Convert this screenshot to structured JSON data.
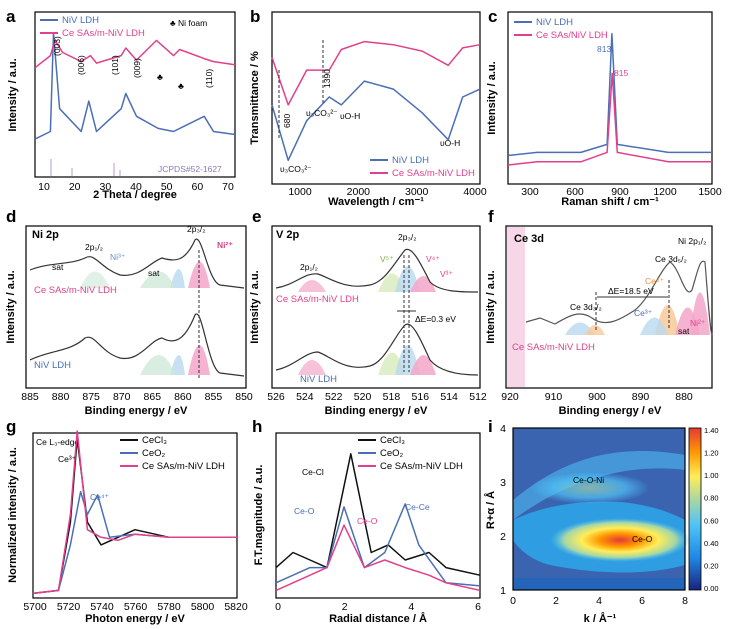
{
  "colors": {
    "blue": "#4a6fb5",
    "pink": "#e0408c",
    "black": "#111111",
    "grid": "#444444"
  },
  "panels": {
    "a": {
      "letter": "a",
      "ylabel": "Intensity / a.u.",
      "xlabel": "2 Theta / degree",
      "xticks": [
        "10",
        "20",
        "30",
        "40",
        "50",
        "60",
        "70"
      ],
      "legend": [
        "NiV LDH",
        "Ce SAs/m-NiV LDH"
      ],
      "ni_foam": "Ni foam",
      "peaks": [
        "(003)",
        "(006)",
        "(101)",
        "(009)",
        "(110)"
      ],
      "jcpds": "JCPDS#52-1627"
    },
    "b": {
      "letter": "b",
      "ylabel": "Transmittance / %",
      "xlabel": "Wavelength / cm⁻¹",
      "xticks": [
        "1000",
        "2000",
        "3000",
        "4000"
      ],
      "legend": [
        "NiV LDH",
        "Ce SAs/m-NiV LDH"
      ],
      "ann": {
        "co3a": "υ₃CO₃²⁻",
        "co3b": "υ₃CO₃²⁻",
        "oh1": "υO-H",
        "oh2": "υO-H",
        "w680": "680",
        "w1390": "1390"
      }
    },
    "c": {
      "letter": "c",
      "ylabel": "Intensity / a.u.",
      "xlabel": "Raman shift / cm⁻¹",
      "xticks": [
        "300",
        "600",
        "900",
        "1200",
        "1500"
      ],
      "legend": [
        "NiV LDH",
        "Ce SAs/NiV LDH"
      ],
      "p813": "813",
      "p815": "815"
    },
    "d": {
      "letter": "d",
      "title": "Ni 2p",
      "ylabel": "Intensity / a.u.",
      "xlabel": "Binding energy / eV",
      "xticks": [
        "885",
        "880",
        "875",
        "870",
        "865",
        "860",
        "855",
        "850"
      ],
      "labels": {
        "p12": "2p₁/₂",
        "p32": "2p₃/₂",
        "sat1": "sat",
        "sat2": "sat",
        "ni3": "Ni³⁺",
        "ni2": "Ni²⁺",
        "top": "Ce SAs/m-NiV LDH",
        "bot": "NiV LDH"
      }
    },
    "e": {
      "letter": "e",
      "title": "V 2p",
      "ylabel": "Intensity / a.u.",
      "xlabel": "Binding energy / eV",
      "xticks": [
        "526",
        "524",
        "522",
        "520",
        "518",
        "516",
        "514",
        "512"
      ],
      "labels": {
        "p12": "2p₁/₂",
        "p32": "2p₃/₂",
        "v5": "V⁵⁺",
        "v4": "V⁴⁺",
        "v3": "V³⁺",
        "shift": "ΔE=0.3 eV",
        "top": "Ce SAs/m-NiV LDH",
        "bot": "NiV LDH"
      }
    },
    "f": {
      "letter": "f",
      "title": "Ce 3d",
      "ylabel": "Intensity / a.u.",
      "xlabel": "Binding energy / eV",
      "xticks": [
        "920",
        "910",
        "900",
        "890",
        "880"
      ],
      "labels": {
        "ni": "Ni 2p₁/₂",
        "ce32": "Ce 3d₅/₂",
        "ce52": "Ce 3d₃/₂",
        "de": "ΔE=18.5 eV",
        "ce4": "Ce⁴⁺",
        "ce3": "Ce³⁺",
        "ni2": "Ni²⁺",
        "sat": "sat",
        "sample": "Ce SAs/m-NiV LDH"
      }
    },
    "g": {
      "letter": "g",
      "title": "Ce L₃-edge",
      "ylabel": "Normalized intensity / a.u.",
      "xlabel": "Photon energy / eV",
      "xticks": [
        "5700",
        "5720",
        "5740",
        "5760",
        "5780",
        "5800",
        "5820"
      ],
      "legend": [
        "CeCl₃",
        "CeO₂",
        "Ce SAs/m-NiV LDH"
      ],
      "ce3": "Ce³⁺",
      "ce4": "Ce⁴⁺"
    },
    "h": {
      "letter": "h",
      "ylabel": "F.T.magnitude / a.u.",
      "xlabel": "Radial distance / Å",
      "xticks": [
        "0",
        "2",
        "4",
        "6"
      ],
      "legend": [
        "CeCl₃",
        "CeO₂",
        "Ce SAs/m-NiV LDH"
      ],
      "ann": {
        "cecl": "Ce-Cl",
        "ceo1": "Ce-O",
        "ceo2": "Ce-O",
        "cece": "Ce-Ce"
      }
    },
    "i": {
      "letter": "i",
      "ylabel": "R+α / Å",
      "xlabel": "k / Å⁻¹",
      "xticks": [
        "0",
        "2",
        "4",
        "6",
        "8"
      ],
      "yticks": [
        "1",
        "2",
        "3",
        "4"
      ],
      "cbticks": [
        "0.00",
        "0.20",
        "0.40",
        "0.60",
        "0.80",
        "1.00",
        "1.20",
        "1.40"
      ],
      "ann": {
        "ceoni": "Ce-O-Ni",
        "ceo": "Ce-O"
      }
    }
  },
  "chart_data": [
    {
      "panel": "a",
      "type": "line",
      "title": "",
      "xlabel": "2 Theta / degree",
      "ylabel": "Intensity / a.u.",
      "xlim": [
        5,
        70
      ],
      "series": [
        {
          "name": "NiV LDH",
          "x": [
            5,
            10,
            11,
            13,
            20,
            22.5,
            25,
            33,
            34.5,
            38,
            45,
            50,
            60,
            63,
            70
          ],
          "y": [
            0.25,
            0.3,
            0.95,
            0.45,
            0.3,
            0.5,
            0.3,
            0.45,
            0.55,
            0.4,
            0.32,
            0.3,
            0.4,
            0.3,
            0.28
          ]
        },
        {
          "name": "Ce SAs/m-NiV LDH",
          "x": [
            5,
            10,
            11.5,
            14,
            20,
            23,
            25,
            33,
            34.5,
            38,
            44.5,
            50,
            52,
            60,
            63,
            70
          ],
          "y": [
            0.72,
            0.8,
            0.9,
            0.82,
            0.76,
            0.8,
            0.75,
            0.8,
            0.85,
            0.77,
            0.9,
            0.8,
            0.84,
            0.78,
            0.76,
            0.74
          ]
        }
      ]
    },
    {
      "panel": "b",
      "type": "line",
      "xlabel": "Wavelength / cm⁻¹",
      "ylabel": "Transmittance / %",
      "xlim": [
        400,
        4000
      ],
      "series": [
        {
          "name": "NiV LDH",
          "x": [
            400,
            680,
            1000,
            1390,
            1600,
            2000,
            2500,
            3000,
            3450,
            3700,
            4000
          ],
          "y": [
            0.5,
            0.15,
            0.4,
            0.55,
            0.5,
            0.65,
            0.6,
            0.45,
            0.28,
            0.55,
            0.6
          ]
        },
        {
          "name": "Ce SAs/m-NiV LDH",
          "x": [
            400,
            680,
            1000,
            1390,
            1600,
            2000,
            2500,
            3000,
            3450,
            3700,
            4000
          ],
          "y": [
            0.8,
            0.5,
            0.72,
            0.72,
            0.85,
            0.9,
            0.88,
            0.84,
            0.75,
            0.86,
            0.88
          ]
        }
      ]
    },
    {
      "panel": "c",
      "type": "line",
      "xlabel": "Raman shift / cm⁻¹",
      "ylabel": "Intensity / a.u.",
      "xlim": [
        100,
        1500
      ],
      "series": [
        {
          "name": "NiV LDH",
          "x": [
            100,
            300,
            600,
            780,
            813,
            850,
            1200,
            1500
          ],
          "y": [
            0.18,
            0.2,
            0.2,
            0.25,
            0.95,
            0.25,
            0.2,
            0.2
          ]
        },
        {
          "name": "Ce SAs/NiV LDH",
          "x": [
            100,
            300,
            600,
            780,
            815,
            850,
            1200,
            1500
          ],
          "y": [
            0.12,
            0.14,
            0.14,
            0.2,
            0.7,
            0.2,
            0.14,
            0.14
          ]
        }
      ]
    },
    {
      "panel": "d",
      "type": "line",
      "xlabel": "Binding energy / eV",
      "xlim": [
        885,
        850
      ],
      "peaks": {
        "Ni2+ 2p3/2": 855.6,
        "Ni3+ 2p3/2": 857,
        "sat": 861.5,
        "2p1/2": 873.5
      }
    },
    {
      "panel": "e",
      "type": "line",
      "xlabel": "Binding energy / eV",
      "xlim": [
        527,
        512
      ],
      "peaks": {
        "V5+": 517.5,
        "V4+": 516.8,
        "V3+": 515.8,
        "2p1/2": 524
      },
      "shift_eV": 0.3
    },
    {
      "panel": "f",
      "type": "line",
      "xlabel": "Binding energy / eV",
      "xlim": [
        920,
        872
      ],
      "peaks": {
        "Ce 3d3/2": 900,
        "Ce 3d5/2": 881.5,
        "Ni 2p1/2": 873.5
      },
      "deltaE_eV": 18.5
    },
    {
      "panel": "g",
      "type": "line",
      "xlabel": "Photon energy / eV",
      "ylabel": "Normalized intensity / a.u.",
      "xlim": [
        5700,
        5820
      ],
      "series": [
        {
          "name": "CeCl₃",
          "x": [
            5700,
            5715,
            5722,
            5726,
            5732,
            5740,
            5750,
            5760,
            5780,
            5820
          ],
          "y": [
            0.03,
            0.05,
            0.5,
            1.05,
            0.5,
            0.35,
            0.4,
            0.45,
            0.4,
            0.4
          ]
        },
        {
          "name": "CeO₂",
          "x": [
            5700,
            5715,
            5722,
            5728,
            5732,
            5738,
            5745,
            5760,
            5780,
            5820
          ],
          "y": [
            0.03,
            0.05,
            0.35,
            0.7,
            0.55,
            0.68,
            0.4,
            0.42,
            0.4,
            0.4
          ]
        },
        {
          "name": "Ce SAs/m-NiV LDH",
          "x": [
            5700,
            5715,
            5722,
            5726,
            5732,
            5740,
            5750,
            5760,
            5780,
            5820
          ],
          "y": [
            0.03,
            0.05,
            0.55,
            1.1,
            0.45,
            0.4,
            0.38,
            0.42,
            0.4,
            0.4
          ]
        }
      ]
    },
    {
      "panel": "h",
      "type": "line",
      "xlabel": "Radial distance / Å",
      "ylabel": "F.T.magnitude / a.u.",
      "xlim": [
        0,
        6
      ],
      "series": [
        {
          "name": "CeCl₃",
          "x": [
            0,
            0.5,
            1,
            1.5,
            2.2,
            2.8,
            3.3,
            3.8,
            4.5,
            5,
            6
          ],
          "y": [
            0.2,
            0.3,
            0.25,
            0.2,
            0.95,
            0.3,
            0.35,
            0.25,
            0.3,
            0.2,
            0.15
          ]
        },
        {
          "name": "CeO₂",
          "x": [
            0,
            0.5,
            1,
            1.5,
            2,
            2.6,
            3.2,
            3.8,
            4.2,
            5,
            6
          ],
          "y": [
            0.1,
            0.15,
            0.2,
            0.2,
            0.6,
            0.2,
            0.3,
            0.62,
            0.35,
            0.1,
            0.08
          ]
        },
        {
          "name": "Ce SAs/m-NiV LDH",
          "x": [
            0,
            0.5,
            1,
            1.5,
            2,
            2.6,
            3.2,
            3.8,
            4.5,
            5,
            6
          ],
          "y": [
            0.05,
            0.1,
            0.15,
            0.2,
            0.48,
            0.2,
            0.25,
            0.2,
            0.15,
            0.1,
            0.05
          ]
        }
      ]
    },
    {
      "panel": "i",
      "type": "heatmap",
      "xlabel": "k / Å⁻¹",
      "ylabel": "R+α / Å",
      "xlim": [
        0,
        8
      ],
      "ylim": [
        1,
        4
      ],
      "zlim": [
        0,
        1.4
      ],
      "maxima": [
        {
          "label": "Ce-O",
          "k": 5,
          "R": 2.0,
          "z": 1.45
        },
        {
          "label": "Ce-O-Ni",
          "k": 4,
          "R": 3.0,
          "z": 0.55
        }
      ]
    }
  ]
}
